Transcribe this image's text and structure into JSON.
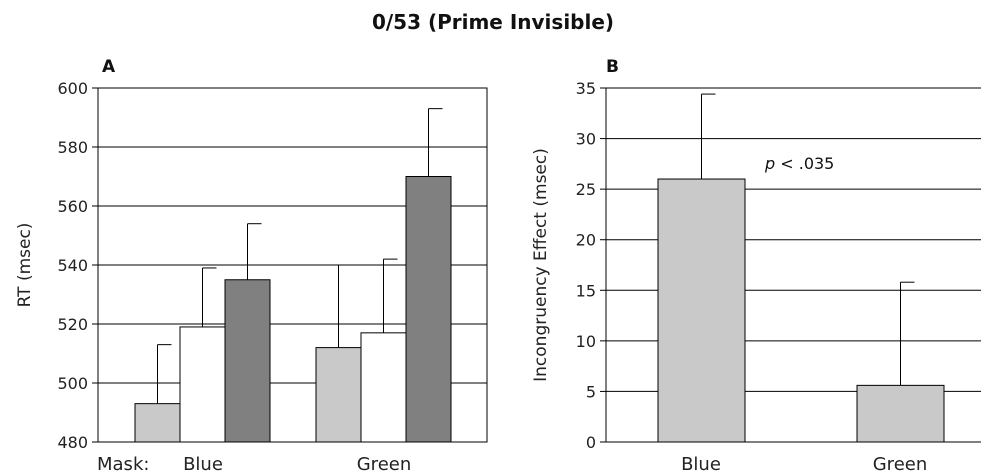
{
  "title": "0/53 (Prime Invisible)",
  "chart_data": [
    {
      "type": "bar",
      "panel_label": "A",
      "ylabel": "RT (msec)",
      "xlabel_prefix": "Mask:",
      "ylim": [
        480,
        600
      ],
      "yticks": [
        480,
        500,
        520,
        540,
        560,
        580,
        600
      ],
      "grid": true,
      "categories": [
        "Blue",
        "Green"
      ],
      "series": [
        {
          "values": [
            493,
            512
          ],
          "errors": [
            20,
            28
          ],
          "color": "#c8c9c8"
        },
        {
          "values": [
            519,
            517
          ],
          "errors": [
            20,
            25
          ],
          "color": "#ffffff"
        },
        {
          "values": [
            535,
            570
          ],
          "errors": [
            19,
            23
          ],
          "color": "#808080"
        }
      ]
    },
    {
      "type": "bar",
      "panel_label": "B",
      "ylabel": "Incongruency Effect (msec)",
      "ylim": [
        0,
        35
      ],
      "yticks": [
        0,
        5,
        10,
        15,
        20,
        25,
        30,
        35
      ],
      "grid": true,
      "categories": [
        "Blue",
        "Green"
      ],
      "series": [
        {
          "values": [
            26,
            5.6
          ],
          "errors": [
            8.4,
            10.2
          ],
          "color": "#c8c9c8"
        }
      ],
      "annotation": {
        "prefix": "p",
        "text": " < .035"
      }
    }
  ]
}
